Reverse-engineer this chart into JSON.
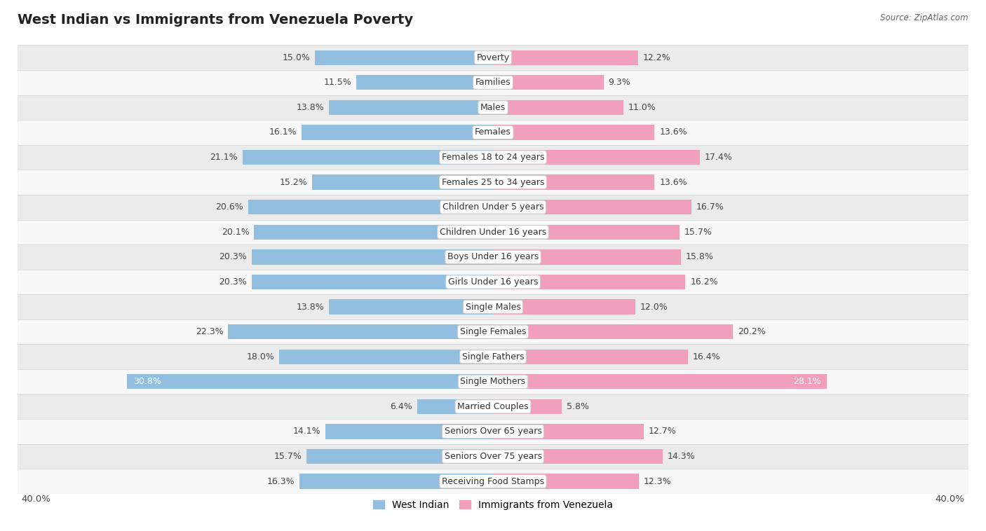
{
  "title": "West Indian vs Immigrants from Venezuela Poverty",
  "source": "Source: ZipAtlas.com",
  "categories": [
    "Poverty",
    "Families",
    "Males",
    "Females",
    "Females 18 to 24 years",
    "Females 25 to 34 years",
    "Children Under 5 years",
    "Children Under 16 years",
    "Boys Under 16 years",
    "Girls Under 16 years",
    "Single Males",
    "Single Females",
    "Single Fathers",
    "Single Mothers",
    "Married Couples",
    "Seniors Over 65 years",
    "Seniors Over 75 years",
    "Receiving Food Stamps"
  ],
  "west_indian": [
    15.0,
    11.5,
    13.8,
    16.1,
    21.1,
    15.2,
    20.6,
    20.1,
    20.3,
    20.3,
    13.8,
    22.3,
    18.0,
    30.8,
    6.4,
    14.1,
    15.7,
    16.3
  ],
  "venezuela": [
    12.2,
    9.3,
    11.0,
    13.6,
    17.4,
    13.6,
    16.7,
    15.7,
    15.8,
    16.2,
    12.0,
    20.2,
    16.4,
    28.1,
    5.8,
    12.7,
    14.3,
    12.3
  ],
  "x_max": 40.0,
  "blue_color": "#92bfdf",
  "pink_color": "#f0a0bc",
  "blue_label": "West Indian",
  "pink_label": "Immigrants from Venezuela",
  "bar_height": 0.6,
  "label_fontsize": 9.0,
  "category_fontsize": 9.0,
  "title_fontsize": 14,
  "row_colors": [
    "#ebebeb",
    "#f8f8f8"
  ]
}
